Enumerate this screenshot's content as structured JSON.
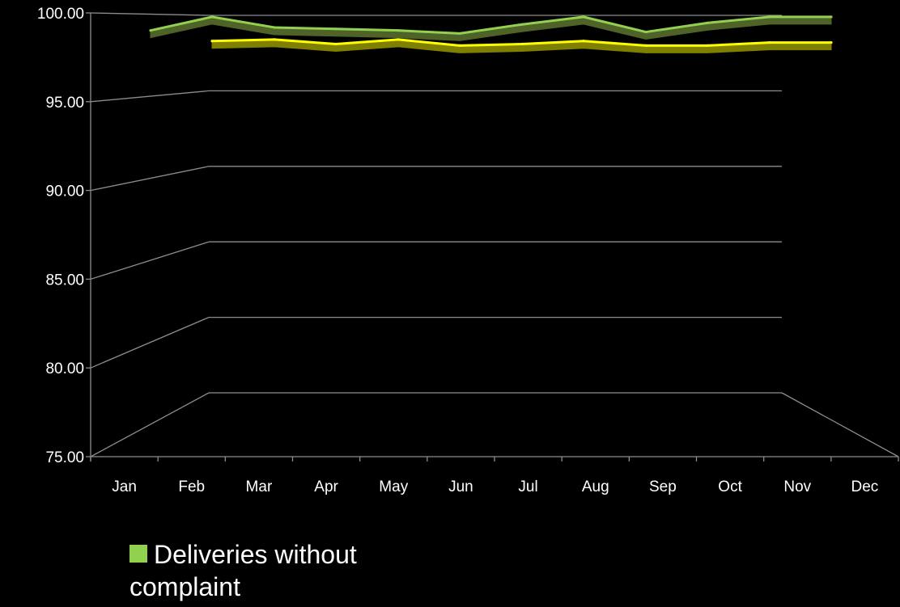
{
  "chart_data": {
    "type": "line",
    "title": "",
    "xlabel": "",
    "ylabel": "",
    "categories": [
      "Jan",
      "Feb",
      "Mar",
      "Apr",
      "May",
      "Jun",
      "Jul",
      "Aug",
      "Sep",
      "Oct",
      "Nov",
      "Dec"
    ],
    "ylim": [
      75,
      100
    ],
    "y_ticks": [
      "75.00",
      "80.00",
      "85.00",
      "90.00",
      "95.00",
      "100.00"
    ],
    "grid": true,
    "legend_position": "bottom-left",
    "series": [
      {
        "name": "Deliveries without complaint",
        "color": "#92d050",
        "shadow_color": "#4f6228",
        "values": [
          99.0,
          99.9,
          99.2,
          99.1,
          99.0,
          98.8,
          99.4,
          99.9,
          98.9,
          99.5,
          99.9,
          99.9
        ]
      },
      {
        "color": "#ffff00",
        "shadow_color": "#7f7f00",
        "values": [
          null,
          98.3,
          98.4,
          98.1,
          98.4,
          98.0,
          98.1,
          98.3,
          98.0,
          98.0,
          98.2,
          98.2
        ]
      }
    ]
  },
  "legend": {
    "label": "Deliveries without complaint",
    "swatch_color": "#92d050"
  }
}
